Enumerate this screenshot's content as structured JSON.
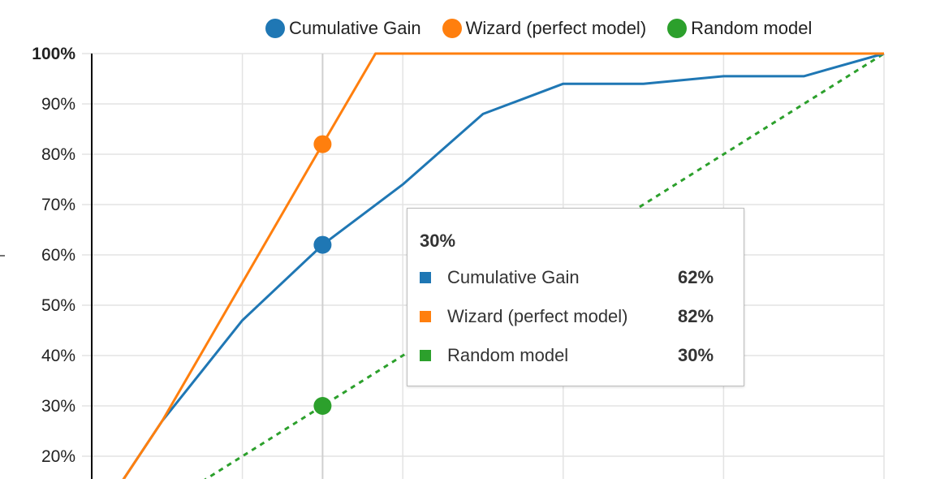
{
  "chart_data": {
    "type": "line",
    "x_unit": "fraction of population",
    "x_domain": [
      0,
      1
    ],
    "ylim": [
      0.15,
      1.0
    ],
    "y_ticks": [
      {
        "value": 1.0,
        "label": "100%",
        "bold": true
      },
      {
        "value": 0.9,
        "label": "90%"
      },
      {
        "value": 0.8,
        "label": "80%"
      },
      {
        "value": 0.7,
        "label": "70%"
      },
      {
        "value": 0.6,
        "label": "60%"
      },
      {
        "value": 0.5,
        "label": "50%"
      },
      {
        "value": 0.4,
        "label": "40%"
      },
      {
        "value": 0.3,
        "label": "30%"
      },
      {
        "value": 0.2,
        "label": "20%"
      }
    ],
    "x_gridlines": [
      0.2,
      0.4,
      0.6,
      0.8,
      1.0
    ],
    "series": [
      {
        "name": "Cumulative Gain",
        "color": "#1f77b4",
        "dashed": false,
        "points": [
          [
            0.05,
            0.15
          ],
          [
            0.1,
            0.27
          ],
          [
            0.2,
            0.47
          ],
          [
            0.3,
            0.62
          ],
          [
            0.4,
            0.74
          ],
          [
            0.5,
            0.88
          ],
          [
            0.6,
            0.94
          ],
          [
            0.7,
            0.94
          ],
          [
            0.8,
            0.955
          ],
          [
            0.9,
            0.955
          ],
          [
            1.0,
            1.0
          ]
        ]
      },
      {
        "name": "Wizard (perfect model)",
        "color": "#ff7f0e",
        "dashed": false,
        "points": [
          [
            0.05,
            0.15
          ],
          [
            0.1,
            0.27
          ],
          [
            0.2,
            0.545
          ],
          [
            0.3,
            0.82
          ],
          [
            0.366,
            1.0
          ],
          [
            1.0,
            1.0
          ]
        ]
      },
      {
        "name": "Random model",
        "color": "#2ca02c",
        "dashed": true,
        "points": [
          [
            0.15,
            0.15
          ],
          [
            1.0,
            1.0
          ]
        ]
      }
    ],
    "hover_x": 0.3,
    "hover_points": [
      {
        "series": "Cumulative Gain",
        "y": 0.62
      },
      {
        "series": "Wizard (perfect model)",
        "y": 0.82
      },
      {
        "series": "Random model",
        "y": 0.3
      }
    ]
  },
  "legend": {
    "items": [
      {
        "label": "Cumulative Gain",
        "color": "#1f77b4"
      },
      {
        "label": "Wizard (perfect model)",
        "color": "#ff7f0e"
      },
      {
        "label": "Random model",
        "color": "#2ca02c"
      }
    ]
  },
  "tooltip": {
    "title": "30%",
    "rows": [
      {
        "label": "Cumulative Gain",
        "value": "62%",
        "color": "#1f77b4"
      },
      {
        "label": "Wizard (perfect model)",
        "value": "82%",
        "color": "#ff7f0e"
      },
      {
        "label": "Random model",
        "value": "30%",
        "color": "#2ca02c"
      }
    ]
  }
}
